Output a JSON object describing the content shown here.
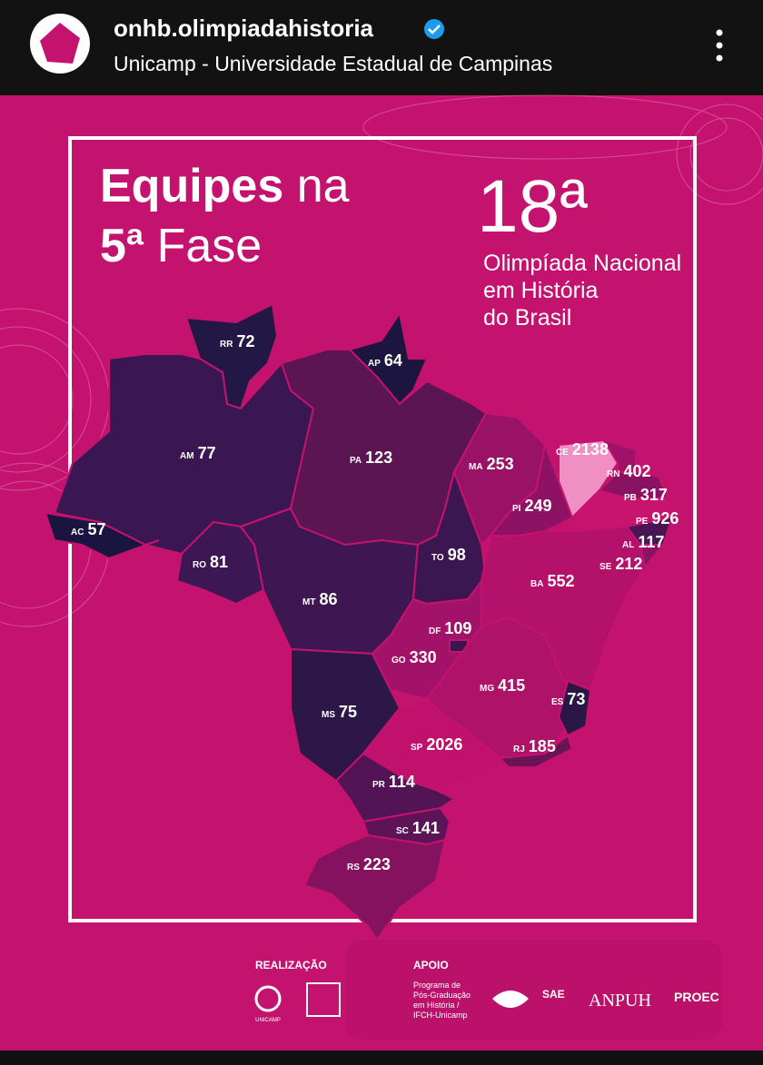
{
  "header": {
    "username": "onhb.olimpiadahistoria",
    "subtitle": "Unicamp - Universidade Estadual de Campinas"
  },
  "poster": {
    "title_bold_1": "Equipes",
    "title_1": "na",
    "title_bold_2": "5ª",
    "title_2": "Fase",
    "edition": "18ª",
    "event_lines": [
      "Olimpíada Nacional",
      "em História",
      "do Brasil"
    ]
  },
  "map": {
    "states": [
      {
        "code": "RR",
        "value": 72,
        "color": "#231845"
      },
      {
        "code": "AP",
        "value": 64,
        "color": "#1c1540"
      },
      {
        "code": "AM",
        "value": 77,
        "color": "#3a1752"
      },
      {
        "code": "AC",
        "value": 57,
        "color": "#1a1440"
      },
      {
        "code": "PA",
        "value": 123,
        "color": "#5a1552"
      },
      {
        "code": "RO",
        "value": 81,
        "color": "#3d1753"
      },
      {
        "code": "MT",
        "value": 86,
        "color": "#3e1752"
      },
      {
        "code": "TO",
        "value": 98,
        "color": "#3c1650"
      },
      {
        "code": "MA",
        "value": 253,
        "color": "#9a1266"
      },
      {
        "code": "PI",
        "value": 249,
        "color": "#8e1264"
      },
      {
        "code": "CE",
        "value": 2138,
        "color": "#f08fc4"
      },
      {
        "code": "RN",
        "value": 402,
        "color": "#9e1268"
      },
      {
        "code": "PB",
        "value": 317,
        "color": "#8a1262"
      },
      {
        "code": "PE",
        "value": 926,
        "color": "#c8146f"
      },
      {
        "code": "AL",
        "value": 117,
        "color": "#4a1556"
      },
      {
        "code": "SE",
        "value": 212,
        "color": "#8e1264"
      },
      {
        "code": "BA",
        "value": 552,
        "color": "#b4116b"
      },
      {
        "code": "GO",
        "value": 330,
        "color": "#a21268"
      },
      {
        "code": "DF",
        "value": 109,
        "color": "#3a1550"
      },
      {
        "code": "MS",
        "value": 75,
        "color": "#2c1748"
      },
      {
        "code": "MG",
        "value": 415,
        "color": "#ae1269"
      },
      {
        "code": "ES",
        "value": 73,
        "color": "#2b1648"
      },
      {
        "code": "RJ",
        "value": 185,
        "color": "#6a1458"
      },
      {
        "code": "SP",
        "value": 2026,
        "color": "#c0126d"
      },
      {
        "code": "PR",
        "value": 114,
        "color": "#521454"
      },
      {
        "code": "SC",
        "value": 141,
        "color": "#5c1456"
      },
      {
        "code": "RS",
        "value": 223,
        "color": "#84125f"
      }
    ]
  },
  "footer": {
    "realizacao": "REALIZAÇÃO",
    "apoio": "APOIO",
    "unicamp": "UNICAMP",
    "program_lines": [
      "Programa de",
      "Pós-Graduação",
      "em História /",
      "IFCH-Unicamp"
    ],
    "sae": "SAE",
    "anpuh": "ANPUH",
    "proec": "PROEC"
  }
}
